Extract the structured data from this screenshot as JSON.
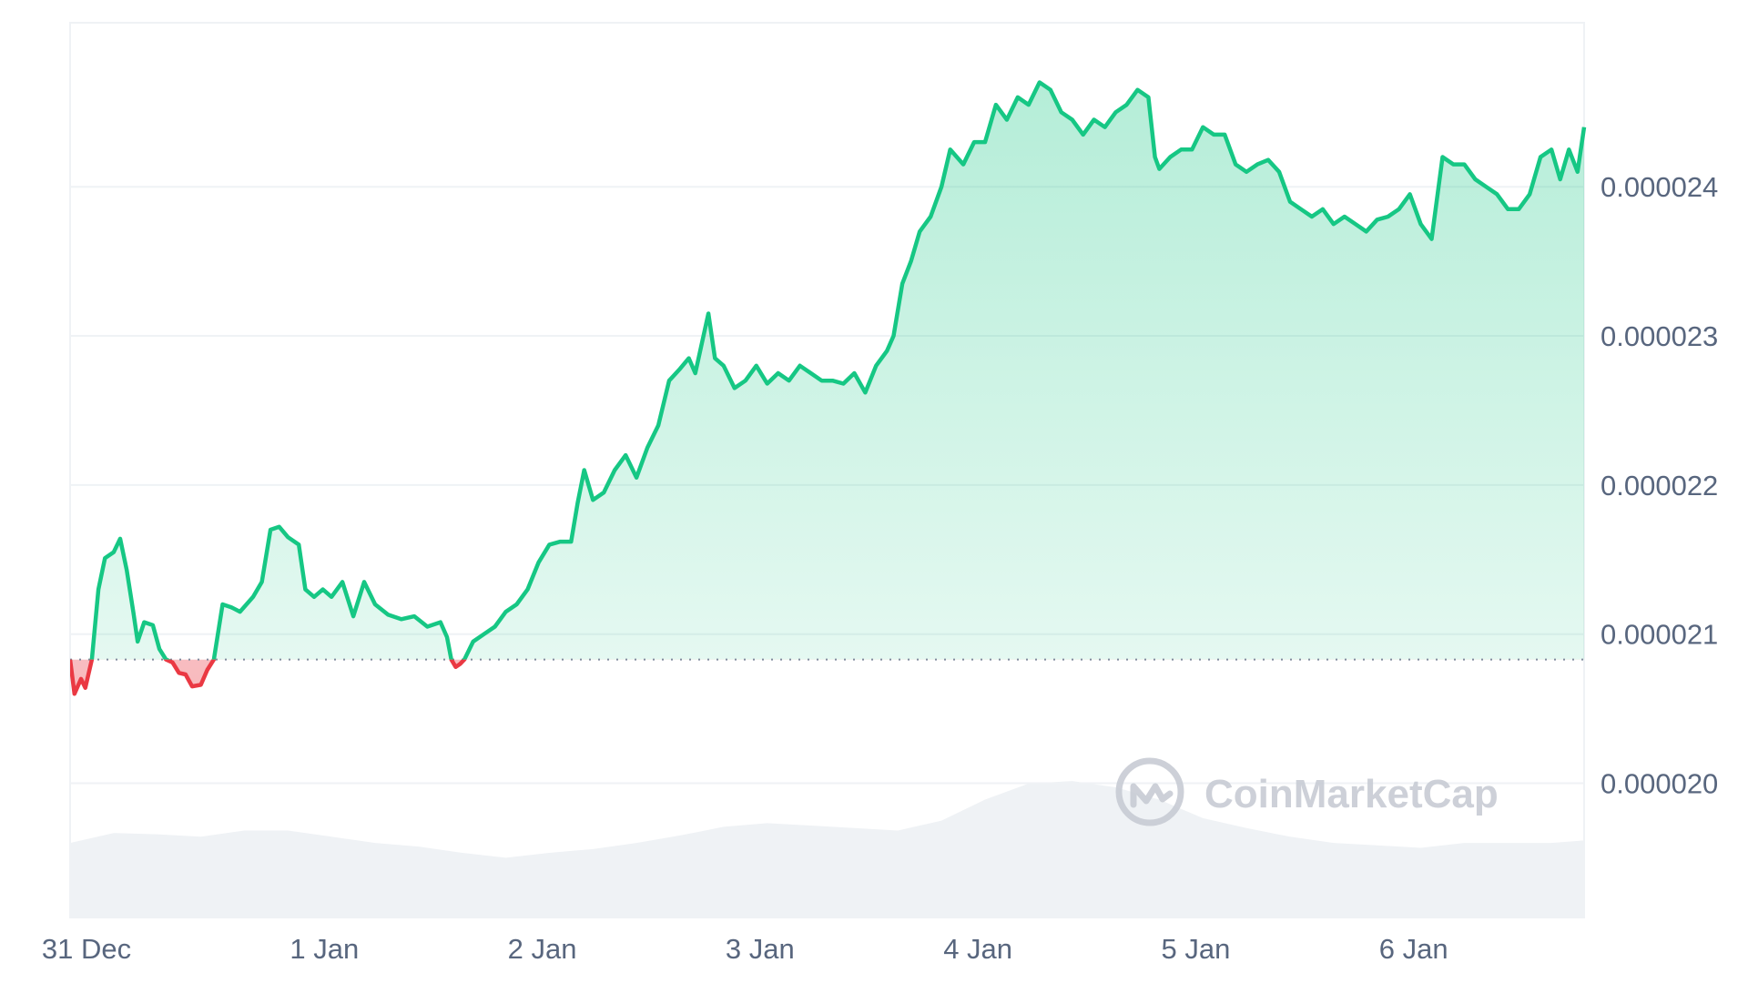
{
  "chart_data": {
    "type": "area",
    "y_axis_position": "right",
    "grid": true,
    "ylim": [
      1.91e-05,
      2.51e-05
    ],
    "y_ticks": [
      "0.000020",
      "0.000021",
      "0.000022",
      "0.000023",
      "0.000024"
    ],
    "y_tick_values": [
      2e-05,
      2.1e-05,
      2.2e-05,
      2.3e-05,
      2.4e-05
    ],
    "x_ticks": [
      "31 Dec",
      "1 Jan",
      "2 Jan",
      "3 Jan",
      "4 Jan",
      "5 Jan",
      "6 Jan"
    ],
    "x_tick_days": [
      0,
      1,
      2,
      3,
      4,
      5,
      6
    ],
    "x_range_days": [
      0,
      6.95
    ],
    "baseline": 2.083e-05,
    "colors": {
      "up_line": "#16c784",
      "down_line": "#ea3943",
      "up_fill": "#16c784",
      "down_fill": "#ea3943",
      "volume": "#eff2f5",
      "grid": "#eff2f5",
      "baseline": "#808a9d"
    },
    "series": [
      {
        "values": [
          [
            0.0,
            2.083e-05
          ],
          [
            0.02,
            2.06e-05
          ],
          [
            0.05,
            2.07e-05
          ],
          [
            0.07,
            2.064e-05
          ],
          [
            0.1,
            2.083e-05
          ],
          [
            0.13,
            2.13e-05
          ],
          [
            0.16,
            2.151e-05
          ],
          [
            0.2,
            2.155e-05
          ],
          [
            0.23,
            2.164e-05
          ],
          [
            0.26,
            2.143e-05
          ],
          [
            0.29,
            2.115e-05
          ],
          [
            0.31,
            2.095e-05
          ],
          [
            0.34,
            2.108e-05
          ],
          [
            0.38,
            2.106e-05
          ],
          [
            0.41,
            2.09e-05
          ],
          [
            0.44,
            2.083e-05
          ],
          [
            0.47,
            2.081e-05
          ],
          [
            0.5,
            2.074e-05
          ],
          [
            0.53,
            2.073e-05
          ],
          [
            0.56,
            2.065e-05
          ],
          [
            0.6,
            2.066e-05
          ],
          [
            0.63,
            2.076e-05
          ],
          [
            0.66,
            2.083e-05
          ],
          [
            0.7,
            2.12e-05
          ],
          [
            0.74,
            2.118e-05
          ],
          [
            0.78,
            2.115e-05
          ],
          [
            0.84,
            2.125e-05
          ],
          [
            0.88,
            2.135e-05
          ],
          [
            0.92,
            2.17e-05
          ],
          [
            0.96,
            2.172e-05
          ],
          [
            1.0,
            2.165e-05
          ],
          [
            1.05,
            2.16e-05
          ],
          [
            1.08,
            2.13e-05
          ],
          [
            1.12,
            2.125e-05
          ],
          [
            1.16,
            2.13e-05
          ],
          [
            1.2,
            2.125e-05
          ],
          [
            1.25,
            2.135e-05
          ],
          [
            1.3,
            2.112e-05
          ],
          [
            1.35,
            2.135e-05
          ],
          [
            1.4,
            2.12e-05
          ],
          [
            1.46,
            2.113e-05
          ],
          [
            1.52,
            2.11e-05
          ],
          [
            1.58,
            2.112e-05
          ],
          [
            1.64,
            2.105e-05
          ],
          [
            1.7,
            2.108e-05
          ],
          [
            1.73,
            2.098e-05
          ],
          [
            1.75,
            2.083e-05
          ],
          [
            1.77,
            2.078e-05
          ],
          [
            1.79,
            2.08e-05
          ],
          [
            1.81,
            2.083e-05
          ],
          [
            1.85,
            2.095e-05
          ],
          [
            1.9,
            2.1e-05
          ],
          [
            1.95,
            2.105e-05
          ],
          [
            2.0,
            2.115e-05
          ],
          [
            2.05,
            2.12e-05
          ],
          [
            2.1,
            2.13e-05
          ],
          [
            2.15,
            2.148e-05
          ],
          [
            2.2,
            2.16e-05
          ],
          [
            2.25,
            2.162e-05
          ],
          [
            2.3,
            2.162e-05
          ],
          [
            2.33,
            2.188e-05
          ],
          [
            2.36,
            2.21e-05
          ],
          [
            2.4,
            2.19e-05
          ],
          [
            2.45,
            2.195e-05
          ],
          [
            2.5,
            2.21e-05
          ],
          [
            2.55,
            2.22e-05
          ],
          [
            2.6,
            2.205e-05
          ],
          [
            2.65,
            2.225e-05
          ],
          [
            2.7,
            2.24e-05
          ],
          [
            2.75,
            2.27e-05
          ],
          [
            2.8,
            2.278e-05
          ],
          [
            2.84,
            2.285e-05
          ],
          [
            2.87,
            2.275e-05
          ],
          [
            2.9,
            2.295e-05
          ],
          [
            2.93,
            2.315e-05
          ],
          [
            2.96,
            2.285e-05
          ],
          [
            3.0,
            2.28e-05
          ],
          [
            3.05,
            2.265e-05
          ],
          [
            3.1,
            2.27e-05
          ],
          [
            3.15,
            2.28e-05
          ],
          [
            3.2,
            2.268e-05
          ],
          [
            3.25,
            2.275e-05
          ],
          [
            3.3,
            2.27e-05
          ],
          [
            3.35,
            2.28e-05
          ],
          [
            3.4,
            2.275e-05
          ],
          [
            3.45,
            2.27e-05
          ],
          [
            3.5,
            2.27e-05
          ],
          [
            3.55,
            2.268e-05
          ],
          [
            3.6,
            2.275e-05
          ],
          [
            3.65,
            2.262e-05
          ],
          [
            3.7,
            2.28e-05
          ],
          [
            3.75,
            2.29e-05
          ],
          [
            3.78,
            2.3e-05
          ],
          [
            3.82,
            2.335e-05
          ],
          [
            3.86,
            2.35e-05
          ],
          [
            3.9,
            2.37e-05
          ],
          [
            3.95,
            2.38e-05
          ],
          [
            4.0,
            2.4e-05
          ],
          [
            4.04,
            2.425e-05
          ],
          [
            4.1,
            2.415e-05
          ],
          [
            4.15,
            2.43e-05
          ],
          [
            4.2,
            2.43e-05
          ],
          [
            4.25,
            2.455e-05
          ],
          [
            4.3,
            2.445e-05
          ],
          [
            4.35,
            2.46e-05
          ],
          [
            4.4,
            2.455e-05
          ],
          [
            4.45,
            2.47e-05
          ],
          [
            4.5,
            2.465e-05
          ],
          [
            4.55,
            2.45e-05
          ],
          [
            4.6,
            2.445e-05
          ],
          [
            4.65,
            2.435e-05
          ],
          [
            4.7,
            2.445e-05
          ],
          [
            4.75,
            2.44e-05
          ],
          [
            4.8,
            2.45e-05
          ],
          [
            4.85,
            2.455e-05
          ],
          [
            4.9,
            2.465e-05
          ],
          [
            4.95,
            2.46e-05
          ],
          [
            4.98,
            2.42e-05
          ],
          [
            5.0,
            2.412e-05
          ],
          [
            5.05,
            2.42e-05
          ],
          [
            5.1,
            2.425e-05
          ],
          [
            5.15,
            2.425e-05
          ],
          [
            5.2,
            2.44e-05
          ],
          [
            5.25,
            2.435e-05
          ],
          [
            5.3,
            2.435e-05
          ],
          [
            5.35,
            2.415e-05
          ],
          [
            5.4,
            2.41e-05
          ],
          [
            5.45,
            2.415e-05
          ],
          [
            5.5,
            2.418e-05
          ],
          [
            5.55,
            2.41e-05
          ],
          [
            5.6,
            2.39e-05
          ],
          [
            5.65,
            2.385e-05
          ],
          [
            5.7,
            2.38e-05
          ],
          [
            5.75,
            2.385e-05
          ],
          [
            5.8,
            2.375e-05
          ],
          [
            5.85,
            2.38e-05
          ],
          [
            5.9,
            2.375e-05
          ],
          [
            5.95,
            2.37e-05
          ],
          [
            6.0,
            2.378e-05
          ],
          [
            6.05,
            2.38e-05
          ],
          [
            6.1,
            2.385e-05
          ],
          [
            6.15,
            2.395e-05
          ],
          [
            6.2,
            2.375e-05
          ],
          [
            6.25,
            2.365e-05
          ],
          [
            6.3,
            2.42e-05
          ],
          [
            6.35,
            2.415e-05
          ],
          [
            6.4,
            2.415e-05
          ],
          [
            6.45,
            2.405e-05
          ],
          [
            6.5,
            2.4e-05
          ],
          [
            6.55,
            2.395e-05
          ],
          [
            6.6,
            2.385e-05
          ],
          [
            6.65,
            2.385e-05
          ],
          [
            6.7,
            2.395e-05
          ],
          [
            6.75,
            2.42e-05
          ],
          [
            6.8,
            2.425e-05
          ],
          [
            6.84,
            2.405e-05
          ],
          [
            6.88,
            2.425e-05
          ],
          [
            6.92,
            2.41e-05
          ],
          [
            6.95,
            2.44e-05
          ]
        ]
      }
    ],
    "volume": [
      [
        0.0,
        0.5
      ],
      [
        0.2,
        0.58
      ],
      [
        0.4,
        0.57
      ],
      [
        0.6,
        0.55
      ],
      [
        0.8,
        0.6
      ],
      [
        1.0,
        0.6
      ],
      [
        1.2,
        0.55
      ],
      [
        1.4,
        0.5
      ],
      [
        1.6,
        0.47
      ],
      [
        1.8,
        0.42
      ],
      [
        2.0,
        0.38
      ],
      [
        2.2,
        0.42
      ],
      [
        2.4,
        0.45
      ],
      [
        2.6,
        0.5
      ],
      [
        2.8,
        0.56
      ],
      [
        3.0,
        0.63
      ],
      [
        3.2,
        0.66
      ],
      [
        3.4,
        0.64
      ],
      [
        3.6,
        0.62
      ],
      [
        3.8,
        0.6
      ],
      [
        4.0,
        0.68
      ],
      [
        4.2,
        0.85
      ],
      [
        4.4,
        0.98
      ],
      [
        4.6,
        1.0
      ],
      [
        4.8,
        0.95
      ],
      [
        5.0,
        0.85
      ],
      [
        5.2,
        0.7
      ],
      [
        5.4,
        0.62
      ],
      [
        5.6,
        0.55
      ],
      [
        5.8,
        0.5
      ],
      [
        6.0,
        0.48
      ],
      [
        6.2,
        0.46
      ],
      [
        6.4,
        0.5
      ],
      [
        6.6,
        0.5
      ],
      [
        6.8,
        0.5
      ],
      [
        6.95,
        0.52
      ]
    ]
  },
  "watermark": {
    "text": "CoinMarketCap",
    "icon": "coinmarketcap-logo-icon"
  }
}
